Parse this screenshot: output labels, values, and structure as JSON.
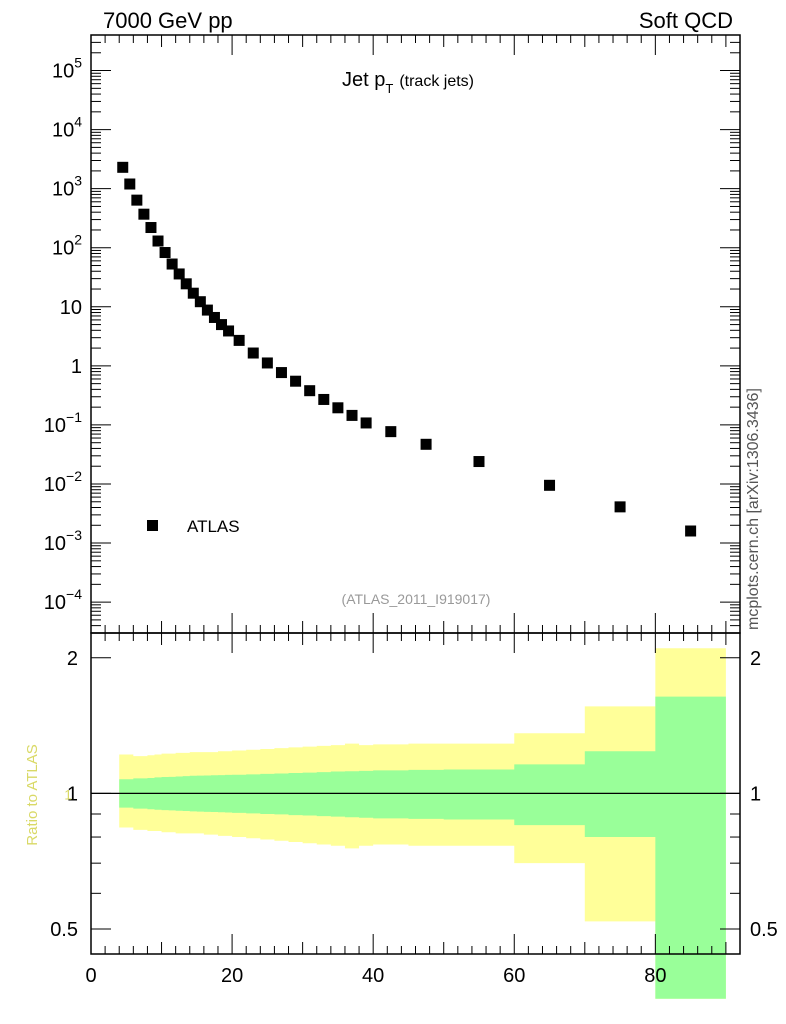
{
  "header": {
    "left": "7000 GeV pp",
    "right": "Soft QCD"
  },
  "watermark": "mcplots.cern.ch [arXiv:1306.3436]",
  "colors": {
    "markers": "#000000",
    "band_outer": "#ffff99",
    "band_inner": "#99ff99",
    "ratio_label": "#d9d966",
    "ref_id": "#999999"
  },
  "chart_data": [
    {
      "type": "scatter",
      "title": "Jet p",
      "title_sub": "T",
      "title_suffix": "(track jets)",
      "reference_id": "(ATLAS_2011_I919017)",
      "legend": {
        "label": "ATLAS",
        "position": "left"
      },
      "yscale": "log",
      "ylim": [
        3e-05,
        400000
      ],
      "xlim": [
        0,
        92
      ],
      "ytick_labels": [
        {
          "value": 0.0001,
          "base": "10",
          "exp": "−4"
        },
        {
          "value": 0.001,
          "base": "10",
          "exp": "−3"
        },
        {
          "value": 0.01,
          "base": "10",
          "exp": "−2"
        },
        {
          "value": 0.1,
          "base": "10",
          "exp": "−1"
        },
        {
          "value": 1,
          "base": "1",
          "exp": ""
        },
        {
          "value": 10,
          "base": "10",
          "exp": ""
        },
        {
          "value": 100,
          "base": "10",
          "exp": "2"
        },
        {
          "value": 1000,
          "base": "10",
          "exp": "3"
        },
        {
          "value": 10000,
          "base": "10",
          "exp": "4"
        },
        {
          "value": 100000,
          "base": "10",
          "exp": "5"
        }
      ],
      "series": [
        {
          "name": "ATLAS",
          "x": [
            4.5,
            5.5,
            6.5,
            7.5,
            8.5,
            9.5,
            10.5,
            11.5,
            12.5,
            13.5,
            14.5,
            15.5,
            16.5,
            17.5,
            18.5,
            19.5,
            21,
            23,
            25,
            27,
            29,
            31,
            33,
            35,
            37,
            39,
            42.5,
            47.5,
            55,
            65,
            75,
            85
          ],
          "y": [
            2300,
            1200,
            640,
            370,
            220,
            130,
            83,
            53,
            36,
            24.5,
            17,
            12.2,
            8.8,
            6.6,
            5.0,
            3.9,
            2.7,
            1.65,
            1.12,
            0.77,
            0.55,
            0.38,
            0.27,
            0.195,
            0.145,
            0.108,
            0.077,
            0.047,
            0.024,
            0.0095,
            0.0041,
            0.0016
          ]
        }
      ]
    },
    {
      "type": "area",
      "ylabel": "Ratio to ATLAS",
      "xlim": [
        0,
        92
      ],
      "ylim": [
        0.44,
        2.27
      ],
      "x_ticks": [
        0,
        20,
        40,
        60,
        80
      ],
      "y_ticks": [
        0.5,
        1,
        2
      ],
      "reference_line": 1,
      "bands": {
        "edges": [
          4,
          5,
          6,
          7,
          8,
          9,
          10,
          11,
          12,
          13,
          14,
          15,
          16,
          17,
          18,
          19,
          20,
          22,
          24,
          26,
          28,
          30,
          32,
          34,
          36,
          38,
          40,
          45,
          50,
          60,
          70,
          80,
          90
        ],
        "inner": [
          [
            0.93,
            1.075
          ],
          [
            0.93,
            1.075
          ],
          [
            0.925,
            1.08
          ],
          [
            0.925,
            1.08
          ],
          [
            0.922,
            1.082
          ],
          [
            0.92,
            1.085
          ],
          [
            0.918,
            1.087
          ],
          [
            0.917,
            1.088
          ],
          [
            0.915,
            1.09
          ],
          [
            0.914,
            1.092
          ],
          [
            0.912,
            1.094
          ],
          [
            0.911,
            1.095
          ],
          [
            0.91,
            1.096
          ],
          [
            0.909,
            1.097
          ],
          [
            0.908,
            1.098
          ],
          [
            0.907,
            1.099
          ],
          [
            0.905,
            1.1
          ],
          [
            0.903,
            1.102
          ],
          [
            0.9,
            1.105
          ],
          [
            0.898,
            1.107
          ],
          [
            0.895,
            1.11
          ],
          [
            0.893,
            1.112
          ],
          [
            0.89,
            1.115
          ],
          [
            0.888,
            1.118
          ],
          [
            0.885,
            1.12
          ],
          [
            0.883,
            1.122
          ],
          [
            0.88,
            1.125
          ],
          [
            0.878,
            1.128
          ],
          [
            0.875,
            1.13
          ],
          [
            0.85,
            1.16
          ],
          [
            0.8,
            1.24
          ],
          [
            0.35,
            1.64
          ],
          [
            0.35,
            1.64
          ]
        ],
        "outer": [
          [
            0.84,
            1.22
          ],
          [
            0.84,
            1.22
          ],
          [
            0.83,
            1.21
          ],
          [
            0.83,
            1.21
          ],
          [
            0.825,
            1.215
          ],
          [
            0.825,
            1.22
          ],
          [
            0.82,
            1.225
          ],
          [
            0.82,
            1.225
          ],
          [
            0.815,
            1.23
          ],
          [
            0.815,
            1.23
          ],
          [
            0.815,
            1.235
          ],
          [
            0.815,
            1.235
          ],
          [
            0.81,
            1.235
          ],
          [
            0.81,
            1.235
          ],
          [
            0.805,
            1.24
          ],
          [
            0.805,
            1.24
          ],
          [
            0.8,
            1.245
          ],
          [
            0.795,
            1.25
          ],
          [
            0.79,
            1.255
          ],
          [
            0.785,
            1.26
          ],
          [
            0.78,
            1.265
          ],
          [
            0.775,
            1.27
          ],
          [
            0.77,
            1.275
          ],
          [
            0.765,
            1.28
          ],
          [
            0.755,
            1.29
          ],
          [
            0.765,
            1.28
          ],
          [
            0.77,
            1.285
          ],
          [
            0.765,
            1.29
          ],
          [
            0.765,
            1.29
          ],
          [
            0.7,
            1.36
          ],
          [
            0.52,
            1.56
          ],
          [
            0.35,
            2.1
          ],
          [
            0.35,
            2.1
          ]
        ]
      }
    }
  ]
}
